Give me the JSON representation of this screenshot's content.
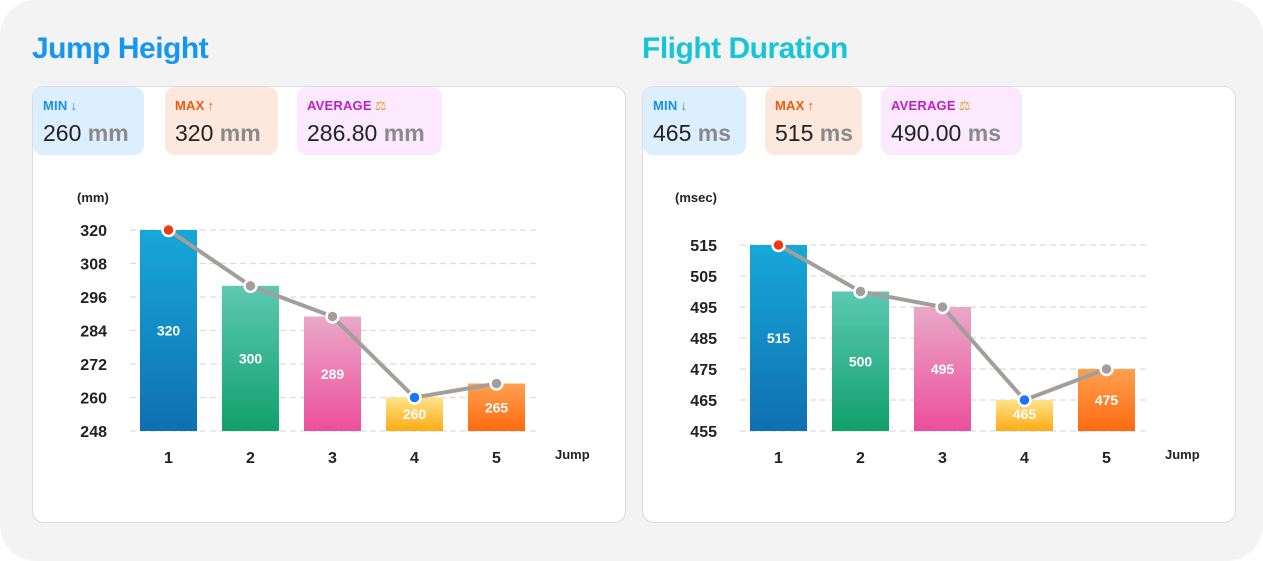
{
  "colors": {
    "title_left": "#1596f0",
    "title_right": "#18c4d8",
    "min_bg": "#dcefff",
    "min_fg": "#1a8fe6",
    "max_bg": "#fde8de",
    "max_fg": "#f05a0a",
    "avg_bg": "#fbeaff",
    "avg_fg": "#c21ec8",
    "line": "#a39e9c",
    "marker_max": "#f03a10",
    "marker_min": "#1677f5",
    "marker_mid": "#a39e9c",
    "bar_gradients": [
      [
        "#16a8d8",
        "#106fb2"
      ],
      [
        "#5cc9b2",
        "#11a06c"
      ],
      [
        "#eaa8c8",
        "#ec4f9c"
      ],
      [
        "#ffe28a",
        "#ffac14"
      ],
      [
        "#ffa050",
        "#ff6a10"
      ]
    ]
  },
  "panels": [
    {
      "title": "Jump Height",
      "stats": {
        "min": {
          "label": "MIN",
          "icon": "arrow-down-icon",
          "value": "260",
          "unit": "mm"
        },
        "max": {
          "label": "MAX",
          "icon": "arrow-up-icon",
          "value": "320",
          "unit": "mm"
        },
        "avg": {
          "label": "AVERAGE",
          "icon": "balance-scale-icon",
          "value": "286.80",
          "unit": "mm"
        }
      },
      "y_unit_label": "(mm)",
      "x_axis_label": "Jump"
    },
    {
      "title": "Flight Duration",
      "stats": {
        "min": {
          "label": "MIN",
          "icon": "arrow-down-icon",
          "value": "465",
          "unit": "ms"
        },
        "max": {
          "label": "MAX",
          "icon": "arrow-up-icon",
          "value": "515",
          "unit": "ms"
        },
        "avg": {
          "label": "AVERAGE",
          "icon": "balance-scale-icon",
          "value": "490.00",
          "unit": "ms"
        }
      },
      "y_unit_label": "(msec)",
      "x_axis_label": "Jump"
    }
  ],
  "chart_data": [
    {
      "type": "bar",
      "title": "Jump Height",
      "xlabel": "Jump",
      "ylabel": "(mm)",
      "categories": [
        "1",
        "2",
        "3",
        "4",
        "5"
      ],
      "values": [
        320,
        300,
        289,
        260,
        265
      ],
      "y_ticks": [
        248,
        260,
        272,
        284,
        296,
        308,
        320
      ],
      "ylim": [
        248,
        320
      ],
      "overlay_line": true,
      "grid": true
    },
    {
      "type": "bar",
      "title": "Flight Duration",
      "xlabel": "Jump",
      "ylabel": "(msec)",
      "categories": [
        "1",
        "2",
        "3",
        "4",
        "5"
      ],
      "values": [
        515,
        500,
        495,
        465,
        475
      ],
      "y_ticks": [
        455,
        465,
        475,
        485,
        495,
        505,
        515
      ],
      "ylim": [
        455,
        515
      ],
      "overlay_line": true,
      "grid": true
    }
  ]
}
